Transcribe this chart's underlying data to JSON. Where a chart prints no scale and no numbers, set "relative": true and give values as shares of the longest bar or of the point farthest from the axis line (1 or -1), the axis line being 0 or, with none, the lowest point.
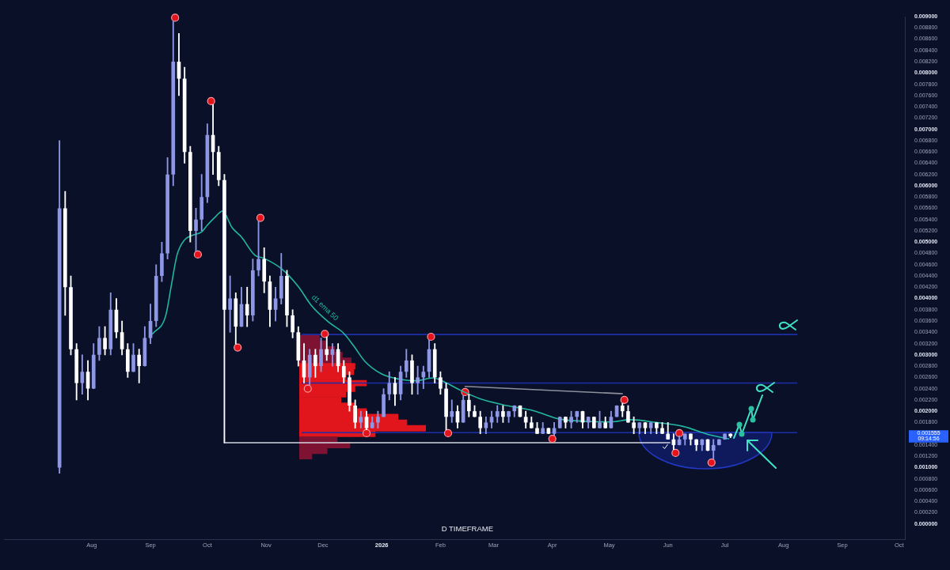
{
  "chart_data": [
    {
      "type": "candlestick",
      "subtitle": "D TIMEFRAME",
      "xlim": [
        "2025-06-16",
        "2026-10-04"
      ],
      "ylim": [
        -0.00027,
        0.009
      ],
      "xticks": [
        {
          "value": "2025-08",
          "label": "Aug"
        },
        {
          "value": "2025-09",
          "label": "Sep"
        },
        {
          "value": "2025-10",
          "label": "Oct"
        },
        {
          "value": "2025-11",
          "label": "Nov"
        },
        {
          "value": "2025-12",
          "label": "Dec"
        },
        {
          "value": "2026-01",
          "label": "2026"
        },
        {
          "value": "2026-02",
          "label": "Feb"
        },
        {
          "value": "2026-03",
          "label": "Mar"
        },
        {
          "value": "2026-04",
          "label": "Apr"
        },
        {
          "value": "2026-05",
          "label": "May"
        },
        {
          "value": "2026-06",
          "label": "Jun"
        },
        {
          "value": "2026-07",
          "label": "Jul"
        },
        {
          "value": "2026-08",
          "label": "Aug"
        },
        {
          "value": "2026-09",
          "label": "Sep"
        },
        {
          "value": "2026-10",
          "label": "Oct"
        }
      ],
      "yticks": [
        {
          "value": 0,
          "label": "0.000000"
        },
        {
          "value": 0.0002,
          "label": "0.000200"
        },
        {
          "value": 0.0004,
          "label": "0.000400"
        },
        {
          "value": 0.0006,
          "label": "0.000600"
        },
        {
          "value": 0.0008,
          "label": "0.000800"
        },
        {
          "value": 0.001,
          "label": "0.001000"
        },
        {
          "value": 0.0012,
          "label": "0.001200"
        },
        {
          "value": 0.0014,
          "label": "0.001400"
        },
        {
          "value": 0.0018,
          "label": "0.001800"
        },
        {
          "value": 0.002,
          "label": "0.002000"
        },
        {
          "value": 0.0022,
          "label": "0.002200"
        },
        {
          "value": 0.0024,
          "label": "0.002400"
        },
        {
          "value": 0.0026,
          "label": "0.002600"
        },
        {
          "value": 0.0028,
          "label": "0.002800"
        },
        {
          "value": 0.003,
          "label": "0.003000"
        },
        {
          "value": 0.0032,
          "label": "0.003200"
        },
        {
          "value": 0.0034,
          "label": "0.003400"
        },
        {
          "value": 0.0036,
          "label": "0.003600"
        },
        {
          "value": 0.0038,
          "label": "0.003800"
        },
        {
          "value": 0.004,
          "label": "0.004000"
        },
        {
          "value": 0.0042,
          "label": "0.004200"
        },
        {
          "value": 0.0044,
          "label": "0.004400"
        },
        {
          "value": 0.0046,
          "label": "0.004600"
        },
        {
          "value": 0.0048,
          "label": "0.004800"
        },
        {
          "value": 0.005,
          "label": "0.005000"
        },
        {
          "value": 0.0052,
          "label": "0.005200"
        },
        {
          "value": 0.0054,
          "label": "0.005400"
        },
        {
          "value": 0.0056,
          "label": "0.005600"
        },
        {
          "value": 0.0058,
          "label": "0.005800"
        },
        {
          "value": 0.006,
          "label": "0.006000"
        },
        {
          "value": 0.0062,
          "label": "0.006200"
        },
        {
          "value": 0.0064,
          "label": "0.006400"
        },
        {
          "value": 0.0066,
          "label": "0.006600"
        },
        {
          "value": 0.0068,
          "label": "0.006800"
        },
        {
          "value": 0.007,
          "label": "0.007000"
        },
        {
          "value": 0.0072,
          "label": "0.007200"
        },
        {
          "value": 0.0074,
          "label": "0.007400"
        },
        {
          "value": 0.0076,
          "label": "0.007600"
        },
        {
          "value": 0.0078,
          "label": "0.007800"
        },
        {
          "value": 0.008,
          "label": "0.008000"
        },
        {
          "value": 0.0082,
          "label": "0.008200"
        },
        {
          "value": 0.0084,
          "label": "0.008400"
        },
        {
          "value": 0.0086,
          "label": "0.008600"
        },
        {
          "value": 0.0088,
          "label": "0.008800"
        },
        {
          "value": 0.009,
          "label": "0.009000"
        }
      ],
      "grid": false,
      "legend": false,
      "annotations": [
        "0.001555",
        "09:14:56"
      ],
      "series": [
        {
          "x": [
            "2025-07-15",
            "2025-07-18",
            "2025-07-21",
            "2025-07-24",
            "2025-07-27",
            "2025-07-30",
            "2025-08-02",
            "2025-08-05",
            "2025-08-08",
            "2025-08-11",
            "2025-08-14",
            "2025-08-17",
            "2025-08-20",
            "2025-08-23",
            "2025-08-26",
            "2025-08-29",
            "2025-09-01",
            "2025-09-04",
            "2025-09-07",
            "2025-09-10",
            "2025-09-13",
            "2025-09-16",
            "2025-09-19",
            "2025-09-22",
            "2025-09-25",
            "2025-09-28",
            "2025-10-01",
            "2025-10-04",
            "2025-10-07",
            "2025-10-10",
            "2025-10-13",
            "2025-10-16",
            "2025-10-19",
            "2025-10-22",
            "2025-10-25",
            "2025-10-28",
            "2025-10-31",
            "2025-11-03",
            "2025-11-06",
            "2025-11-09",
            "2025-11-12",
            "2025-11-15",
            "2025-11-18",
            "2025-11-21",
            "2025-11-24",
            "2025-11-27",
            "2025-11-30",
            "2025-12-03",
            "2025-12-06",
            "2025-12-09",
            "2025-12-12",
            "2025-12-15",
            "2025-12-18",
            "2025-12-21",
            "2025-12-24",
            "2025-12-27",
            "2025-12-30",
            "2026-01-02",
            "2026-01-05",
            "2026-01-08",
            "2026-01-11",
            "2026-01-14",
            "2026-01-17",
            "2026-01-20",
            "2026-01-23",
            "2026-01-26",
            "2026-01-29",
            "2026-02-01",
            "2026-02-04",
            "2026-02-07",
            "2026-02-10",
            "2026-02-13",
            "2026-02-16",
            "2026-02-19",
            "2026-02-22",
            "2026-02-25",
            "2026-02-28",
            "2026-03-03",
            "2026-03-06",
            "2026-03-09",
            "2026-03-12",
            "2026-03-15",
            "2026-03-18",
            "2026-03-21",
            "2026-03-24",
            "2026-03-27",
            "2026-03-30",
            "2026-04-02",
            "2026-04-05",
            "2026-04-08",
            "2026-04-11",
            "2026-04-14",
            "2026-04-17",
            "2026-04-20",
            "2026-04-23",
            "2026-04-26",
            "2026-04-29",
            "2026-05-02",
            "2026-05-05",
            "2026-05-08",
            "2026-05-11",
            "2026-05-14",
            "2026-05-17",
            "2026-05-20",
            "2026-05-23",
            "2026-05-26",
            "2026-05-29",
            "2026-06-01",
            "2026-06-04",
            "2026-06-07",
            "2026-06-10",
            "2026-06-13",
            "2026-06-16",
            "2026-06-19",
            "2026-06-22",
            "2026-06-25",
            "2026-06-28",
            "2026-07-01",
            "2026-07-04"
          ],
          "ohlc": [
            [
              0.001,
              0.0068,
              0.0009,
              0.0056
            ],
            [
              0.0056,
              0.0059,
              0.0037,
              0.0042
            ],
            [
              0.0042,
              0.0044,
              0.003,
              0.0031
            ],
            [
              0.0031,
              0.0032,
              0.0022,
              0.0025
            ],
            [
              0.0025,
              0.003,
              0.0023,
              0.0027
            ],
            [
              0.0027,
              0.0029,
              0.0022,
              0.0024
            ],
            [
              0.0024,
              0.0032,
              0.0024,
              0.003
            ],
            [
              0.003,
              0.0035,
              0.0029,
              0.0033
            ],
            [
              0.0033,
              0.0035,
              0.003,
              0.0031
            ],
            [
              0.0031,
              0.0041,
              0.003,
              0.0038
            ],
            [
              0.0038,
              0.004,
              0.0033,
              0.0034
            ],
            [
              0.0034,
              0.0036,
              0.003,
              0.0031
            ],
            [
              0.0031,
              0.0032,
              0.0026,
              0.0027
            ],
            [
              0.0027,
              0.0032,
              0.0027,
              0.003
            ],
            [
              0.003,
              0.0031,
              0.0025,
              0.0028
            ],
            [
              0.0028,
              0.0035,
              0.0028,
              0.0033
            ],
            [
              0.0033,
              0.0039,
              0.0032,
              0.0036
            ],
            [
              0.0036,
              0.0046,
              0.0035,
              0.0044
            ],
            [
              0.0044,
              0.005,
              0.0043,
              0.0048
            ],
            [
              0.0048,
              0.0065,
              0.0047,
              0.0062
            ],
            [
              0.0062,
              0.00892,
              0.006,
              0.0082
            ],
            [
              0.0082,
              0.0087,
              0.0076,
              0.0079
            ],
            [
              0.0079,
              0.0081,
              0.0064,
              0.0066
            ],
            [
              0.0066,
              0.0067,
              0.005,
              0.0052
            ],
            [
              0.0052,
              0.0056,
              0.00484,
              0.0054
            ],
            [
              0.0054,
              0.0062,
              0.0052,
              0.0058
            ],
            [
              0.0058,
              0.0071,
              0.0057,
              0.0069
            ],
            [
              0.0069,
              0.00744,
              0.0062,
              0.0066
            ],
            [
              0.0066,
              0.0067,
              0.006,
              0.0061
            ],
            [
              0.0061,
              0.0062,
              0.00144,
              0.0038
            ],
            [
              0.0038,
              0.0044,
              0.0034,
              0.004
            ],
            [
              0.004,
              0.0041,
              0.00319,
              0.0035
            ],
            [
              0.0035,
              0.0042,
              0.0035,
              0.0039
            ],
            [
              0.0039,
              0.0042,
              0.0035,
              0.0037
            ],
            [
              0.0037,
              0.0047,
              0.0036,
              0.0045
            ],
            [
              0.0045,
              0.00537,
              0.0044,
              0.0047
            ],
            [
              0.0047,
              0.0049,
              0.0041,
              0.0043
            ],
            [
              0.0043,
              0.0044,
              0.0035,
              0.0038
            ],
            [
              0.0038,
              0.0042,
              0.0036,
              0.004
            ],
            [
              0.004,
              0.0048,
              0.0039,
              0.0044
            ],
            [
              0.0044,
              0.0045,
              0.0035,
              0.0037
            ],
            [
              0.0037,
              0.0038,
              0.0033,
              0.0034
            ],
            [
              0.0034,
              0.0035,
              0.0028,
              0.0029
            ],
            [
              0.0029,
              0.0032,
              0.0025,
              0.0026
            ],
            [
              0.0026,
              0.0031,
              0.00246,
              0.003
            ],
            [
              0.003,
              0.0031,
              0.0026,
              0.0028
            ],
            [
              0.0028,
              0.0033,
              0.0027,
              0.0031
            ],
            [
              0.0031,
              0.00332,
              0.0029,
              0.003
            ],
            [
              0.003,
              0.0032,
              0.0028,
              0.0031
            ],
            [
              0.0031,
              0.0032,
              0.0027,
              0.0028
            ],
            [
              0.0028,
              0.0029,
              0.0025,
              0.0026
            ],
            [
              0.0026,
              0.0027,
              0.002,
              0.0021
            ],
            [
              0.0021,
              0.0022,
              0.0017,
              0.0018
            ],
            [
              0.0018,
              0.002,
              0.0017,
              0.0019
            ],
            [
              0.0019,
              0.002,
              0.00167,
              0.0017
            ],
            [
              0.0017,
              0.0019,
              0.0017,
              0.0018
            ],
            [
              0.0018,
              0.002,
              0.0017,
              0.0019
            ],
            [
              0.0019,
              0.0024,
              0.0019,
              0.0023
            ],
            [
              0.0023,
              0.0027,
              0.0022,
              0.0025
            ],
            [
              0.0025,
              0.0026,
              0.0021,
              0.0023
            ],
            [
              0.0023,
              0.0028,
              0.0022,
              0.0027
            ],
            [
              0.0027,
              0.0031,
              0.0026,
              0.0029
            ],
            [
              0.0029,
              0.003,
              0.0023,
              0.0025
            ],
            [
              0.0025,
              0.0028,
              0.0023,
              0.0026
            ],
            [
              0.0026,
              0.0028,
              0.0024,
              0.0027
            ],
            [
              0.0027,
              0.00326,
              0.0026,
              0.0031
            ],
            [
              0.0031,
              0.0032,
              0.0025,
              0.0026
            ],
            [
              0.0026,
              0.0027,
              0.0023,
              0.0024
            ],
            [
              0.0024,
              0.0025,
              0.00167,
              0.0019
            ],
            [
              0.0019,
              0.0022,
              0.0018,
              0.002
            ],
            [
              0.002,
              0.0021,
              0.0017,
              0.0018
            ],
            [
              0.0018,
              0.00228,
              0.0018,
              0.0022
            ],
            [
              0.0022,
              0.0023,
              0.0019,
              0.002
            ],
            [
              0.002,
              0.0021,
              0.0019,
              0.0019
            ],
            [
              0.0019,
              0.002,
              0.0016,
              0.0017
            ],
            [
              0.0017,
              0.0019,
              0.0016,
              0.0018
            ],
            [
              0.0018,
              0.002,
              0.0017,
              0.0019
            ],
            [
              0.0019,
              0.0021,
              0.0018,
              0.002
            ],
            [
              0.002,
              0.0021,
              0.0018,
              0.0019
            ],
            [
              0.0019,
              0.002,
              0.0018,
              0.002
            ],
            [
              0.002,
              0.0021,
              0.0019,
              0.0021
            ],
            [
              0.0021,
              0.0021,
              0.0019,
              0.0019
            ],
            [
              0.0019,
              0.002,
              0.0017,
              0.0018
            ],
            [
              0.0018,
              0.0019,
              0.0017,
              0.0017
            ],
            [
              0.0017,
              0.0018,
              0.0016,
              0.0016
            ],
            [
              0.0016,
              0.0018,
              0.0016,
              0.0017
            ],
            [
              0.0017,
              0.0017,
              0.0016,
              0.0016
            ],
            [
              0.0016,
              0.0018,
              0.00157,
              0.0017
            ],
            [
              0.0017,
              0.0019,
              0.0017,
              0.0019
            ],
            [
              0.0019,
              0.0019,
              0.0017,
              0.0018
            ],
            [
              0.0018,
              0.002,
              0.0017,
              0.0019
            ],
            [
              0.0019,
              0.002,
              0.0018,
              0.002
            ],
            [
              0.002,
              0.002,
              0.0017,
              0.0018
            ],
            [
              0.0018,
              0.0019,
              0.0017,
              0.0019
            ],
            [
              0.0019,
              0.0019,
              0.0017,
              0.0017
            ],
            [
              0.0017,
              0.002,
              0.0017,
              0.0018
            ],
            [
              0.0018,
              0.0019,
              0.0017,
              0.0017
            ],
            [
              0.0017,
              0.002,
              0.0017,
              0.0019
            ],
            [
              0.0019,
              0.0021,
              0.0019,
              0.0021
            ],
            [
              0.0021,
              0.00214,
              0.0019,
              0.002
            ],
            [
              0.002,
              0.0021,
              0.0018,
              0.0018
            ],
            [
              0.0018,
              0.0019,
              0.0016,
              0.0017
            ],
            [
              0.0017,
              0.0018,
              0.0016,
              0.0018
            ],
            [
              0.0018,
              0.0018,
              0.0016,
              0.0017
            ],
            [
              0.0017,
              0.0018,
              0.0016,
              0.0018
            ],
            [
              0.0018,
              0.0018,
              0.0016,
              0.0017
            ],
            [
              0.0017,
              0.0018,
              0.0016,
              0.0016
            ],
            [
              0.0016,
              0.0018,
              0.0015,
              0.0015
            ],
            [
              0.0015,
              0.0016,
              0.00132,
              0.0014
            ],
            [
              0.0014,
              0.00156,
              0.0014,
              0.0015
            ],
            [
              0.0015,
              0.0016,
              0.0014,
              0.0016
            ],
            [
              0.0016,
              0.0016,
              0.0014,
              0.0015
            ],
            [
              0.0015,
              0.0015,
              0.0013,
              0.0014
            ],
            [
              0.0014,
              0.0015,
              0.0013,
              0.0015
            ],
            [
              0.0015,
              0.0015,
              0.0013,
              0.0013
            ],
            [
              0.0013,
              0.0015,
              0.00115,
              0.0014
            ],
            [
              0.0014,
              0.0015,
              0.0014,
              0.0015
            ],
            [
              0.0015,
              0.0016,
              0.0015,
              0.0016
            ],
            [
              0.0016,
              0.0016,
              0.00153,
              0.001555
            ]
          ],
          "colors": [
            "#8e97e5",
            "#ffffff",
            "#ffffff",
            "#ffffff",
            "#8e97e5",
            "#ffffff",
            "#8e97e5",
            "#8e97e5",
            "#ffffff",
            "#8e97e5",
            "#ffffff",
            "#ffffff",
            "#ffffff",
            "#8e97e5",
            "#ffffff",
            "#8e97e5",
            "#8e97e5",
            "#8e97e5",
            "#8e97e5",
            "#8e97e5",
            "#8e97e5",
            "#ffffff",
            "#ffffff",
            "#ffffff",
            "#8e97e5",
            "#8e97e5",
            "#8e97e5",
            "#ffffff",
            "#ffffff",
            "#ffffff",
            "#8e97e5",
            "#ffffff",
            "#8e97e5",
            "#ffffff",
            "#8e97e5",
            "#8e97e5",
            "#ffffff",
            "#ffffff",
            "#8e97e5",
            "#8e97e5",
            "#ffffff",
            "#ffffff",
            "#ffffff",
            "#ffffff",
            "#8e97e5",
            "#ffffff",
            "#8e97e5",
            "#ffffff",
            "#8e97e5",
            "#ffffff",
            "#ffffff",
            "#ffffff",
            "#ffffff",
            "#8e97e5",
            "#ffffff",
            "#8e97e5",
            "#8e97e5",
            "#8e97e5",
            "#8e97e5",
            "#ffffff",
            "#8e97e5",
            "#8e97e5",
            "#ffffff",
            "#8e97e5",
            "#8e97e5",
            "#8e97e5",
            "#ffffff",
            "#ffffff",
            "#ffffff",
            "#8e97e5",
            "#ffffff",
            "#8e97e5",
            "#ffffff",
            "#ffffff",
            "#ffffff",
            "#8e97e5",
            "#8e97e5",
            "#8e97e5",
            "#ffffff",
            "#8e97e5",
            "#8e97e5",
            "#ffffff",
            "#ffffff",
            "#ffffff",
            "#ffffff",
            "#8e97e5",
            "#ffffff",
            "#8e97e5",
            "#8e97e5",
            "#ffffff",
            "#8e97e5",
            "#8e97e5",
            "#ffffff",
            "#8e97e5",
            "#ffffff",
            "#8e97e5",
            "#ffffff",
            "#8e97e5",
            "#8e97e5",
            "#ffffff",
            "#ffffff",
            "#ffffff",
            "#8e97e5",
            "#ffffff",
            "#8e97e5",
            "#ffffff",
            "#ffffff",
            "#ffffff",
            "#ffffff",
            "#8e97e5",
            "#8e97e5",
            "#ffffff",
            "#ffffff",
            "#8e97e5",
            "#ffffff",
            "#8e97e5",
            "#8e97e5",
            "#8e97e5",
            "#ffffff"
          ]
        },
        {
          "type": "line",
          "name": "d1 ema 50",
          "color": "#22b8a0",
          "x": [
            "2025-09-02",
            "2025-09-09",
            "2025-09-12",
            "2025-09-15",
            "2025-09-19",
            "2025-09-23",
            "2025-09-28",
            "2025-10-01",
            "2025-10-05",
            "2025-10-09",
            "2025-10-14",
            "2025-10-19",
            "2025-10-26",
            "2025-10-31",
            "2025-11-09",
            "2025-11-18",
            "2025-11-25",
            "2025-12-04",
            "2025-12-12",
            "2025-12-17",
            "2025-12-23",
            "2026-01-01",
            "2026-01-10",
            "2026-01-19",
            "2026-01-28",
            "2026-02-03",
            "2026-02-11",
            "2026-02-22",
            "2026-03-08",
            "2026-03-22",
            "2026-04-05",
            "2026-04-19",
            "2026-05-02",
            "2026-05-12",
            "2026-05-26",
            "2026-06-09",
            "2026-06-23",
            "2026-07-03"
          ],
          "values": [
            0.00337,
            0.00369,
            0.00423,
            0.00477,
            0.00504,
            0.00512,
            0.00518,
            0.0053,
            0.00544,
            0.00555,
            0.00526,
            0.00509,
            0.00477,
            0.00471,
            0.00453,
            0.00421,
            0.00387,
            0.00358,
            0.00338,
            0.00317,
            0.00289,
            0.00266,
            0.00257,
            0.00254,
            0.00259,
            0.00252,
            0.00238,
            0.00222,
            0.0021,
            0.00201,
            0.00186,
            0.00182,
            0.00181,
            0.00185,
            0.0018,
            0.00173,
            0.00158,
            0.00151
          ]
        },
        {
          "type": "scatter",
          "color": "#e3141c",
          "marker": "circle",
          "x": [
            "2025-09-14",
            "2025-09-26",
            "2025-10-03",
            "2025-10-17",
            "2025-10-29",
            "2025-11-23",
            "2025-12-02",
            "2025-12-24",
            "2026-01-27",
            "2026-02-05",
            "2026-02-14",
            "2026-04-01",
            "2026-05-09",
            "2026-06-05",
            "2026-06-07",
            "2026-06-24"
          ],
          "values": [
            0.00898,
            0.00478,
            0.0075,
            0.00313,
            0.00543,
            0.0024,
            0.00337,
            0.00161,
            0.00332,
            0.00161,
            0.00234,
            0.00151,
            0.0022,
            0.00126,
            0.00161,
            0.00109
          ]
        },
        {
          "type": "line",
          "color": "#1d2fa8",
          "x": [
            "2025-11-20",
            "2026-08-08"
          ],
          "values": [
            0.00336,
            0.00336
          ]
        },
        {
          "type": "line",
          "color": "#1d2fa8",
          "x": [
            "2025-11-20",
            "2026-08-08"
          ],
          "values": [
            0.0025,
            0.0025
          ]
        },
        {
          "type": "line",
          "color": "#1d2fa8",
          "x": [
            "2025-11-20",
            "2026-08-08"
          ],
          "values": [
            0.00162,
            0.00162
          ]
        },
        {
          "type": "line",
          "color": "#d3d6df",
          "x": [
            "2025-10-10",
            "2026-06-02"
          ],
          "values": [
            0.00144,
            0.00144
          ]
        },
        {
          "type": "line",
          "color": "#8d909c",
          "x": [
            "2026-02-14",
            "2026-05-08"
          ],
          "values": [
            0.00244,
            0.00231
          ]
        }
      ]
    },
    {
      "type": "bar",
      "orientation": "horizontal",
      "relative": true,
      "tick_labels": false,
      "categories": [
        null,
        null,
        null,
        null,
        null,
        null,
        null,
        null,
        null,
        null,
        null,
        null,
        null,
        null,
        null,
        null,
        null,
        null,
        null,
        null,
        null,
        null
      ],
      "values": [
        0.16,
        0.22,
        0.28,
        0.34,
        0.41,
        0.44,
        0.43,
        0.37,
        0.53,
        0.44,
        0.37,
        0.33,
        0.44,
        0.53,
        0.78,
        0.85,
        1,
        0.6,
        0.3,
        0.4,
        0.22,
        0.1
      ],
      "colors": [
        "#7d1232",
        "#7d1232",
        "#7d1232",
        "#7d1232",
        "#7d1232",
        "#e0161c",
        "#e0161c",
        "#e0161c",
        "#e0161c",
        "#e0161c",
        "#e0161c",
        "#e0161c",
        "#e0161c",
        "#e0161c",
        "#e0161c",
        "#e0161c",
        "#e0161c",
        "#e0161c",
        "#7d1232",
        "#7d1232",
        "#7d1232",
        "#7d1232"
      ]
    }
  ]
}
